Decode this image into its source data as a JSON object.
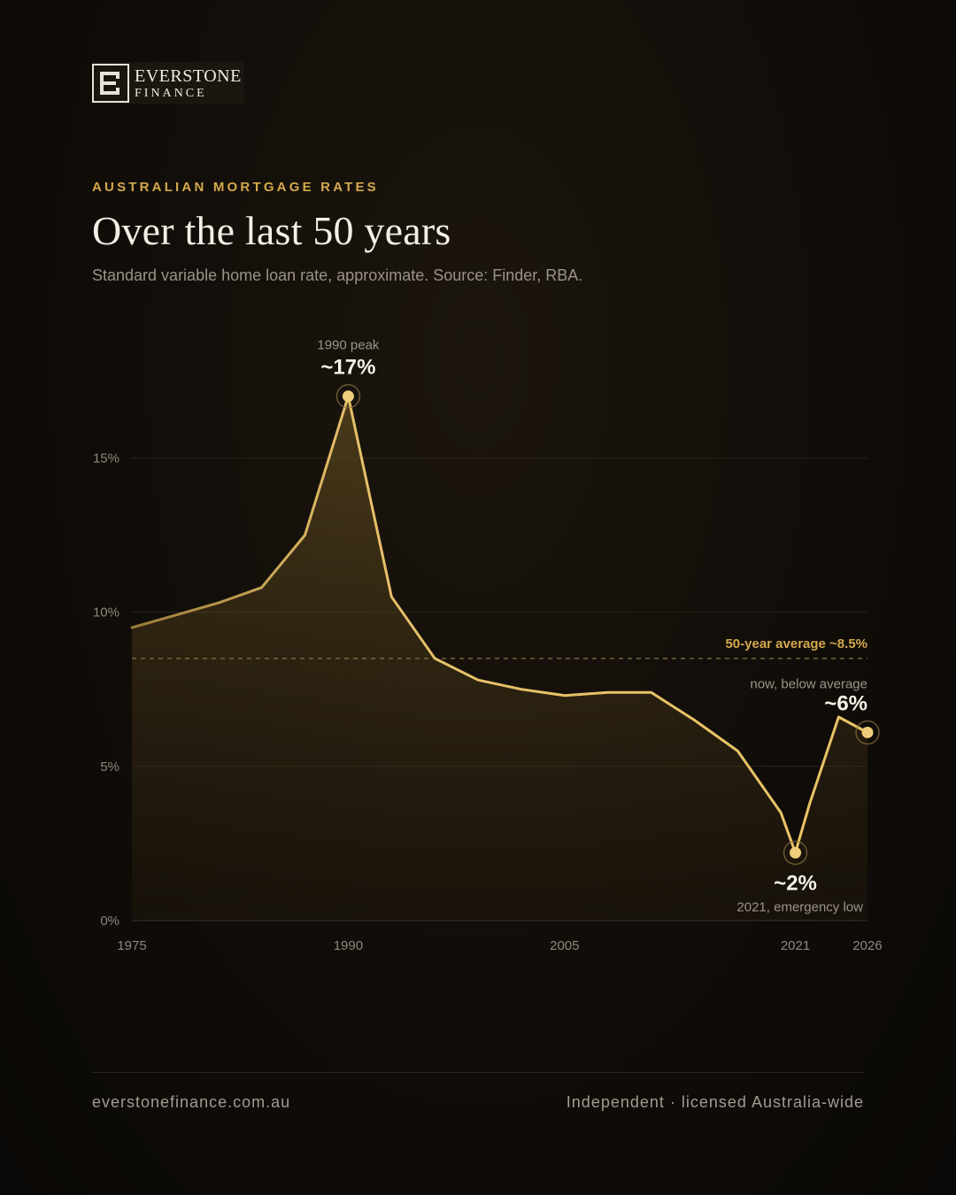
{
  "brand": {
    "name": "EVERSTONE",
    "sub": "FINANCE"
  },
  "header": {
    "kicker": "AUSTRALIAN MORTGAGE RATES",
    "title": "Over the last 50 years",
    "subtitle": "Standard variable home loan rate, approximate. Source: Finder, RBA."
  },
  "colors": {
    "accent": "#d4a94e",
    "line": "#e3bc62",
    "background": "#0d0a07"
  },
  "chart_data": {
    "type": "area",
    "x": [
      1975,
      1978,
      1981,
      1984,
      1987,
      1990,
      1993,
      1996,
      1999,
      2002,
      2005,
      2008,
      2011,
      2014,
      2017,
      2020,
      2021,
      2022,
      2024,
      2026
    ],
    "series": [
      {
        "values": [
          9.5,
          9.9,
          10.3,
          10.8,
          12.5,
          17.0,
          10.5,
          8.5,
          7.8,
          7.5,
          7.3,
          7.4,
          7.4,
          6.5,
          5.5,
          3.5,
          2.2,
          3.8,
          6.6,
          6.1
        ]
      }
    ],
    "xticks": [
      "1975",
      "1990",
      "2005",
      "2021",
      "2026"
    ],
    "yticks": [
      "0%",
      "5%",
      "10%",
      "15%"
    ],
    "ylim": [
      0,
      19
    ],
    "xlim": [
      1975,
      2026
    ],
    "grid": true,
    "average": {
      "value": 8.5,
      "label": "50-year average ~8.5%"
    },
    "annotations": [
      {
        "x": 1990,
        "y": 17.0,
        "caption": "1990 peak",
        "value": "~17%"
      },
      {
        "x": 2021,
        "y": 2.2,
        "caption": "2021, emergency low",
        "value": "~2%"
      },
      {
        "x": 2026,
        "y": 6.1,
        "caption": "now, below average",
        "value": "~6%"
      }
    ]
  },
  "footer": {
    "website": "everstonefinance.com.au",
    "tagline": "Independent · licensed Australia-wide"
  }
}
